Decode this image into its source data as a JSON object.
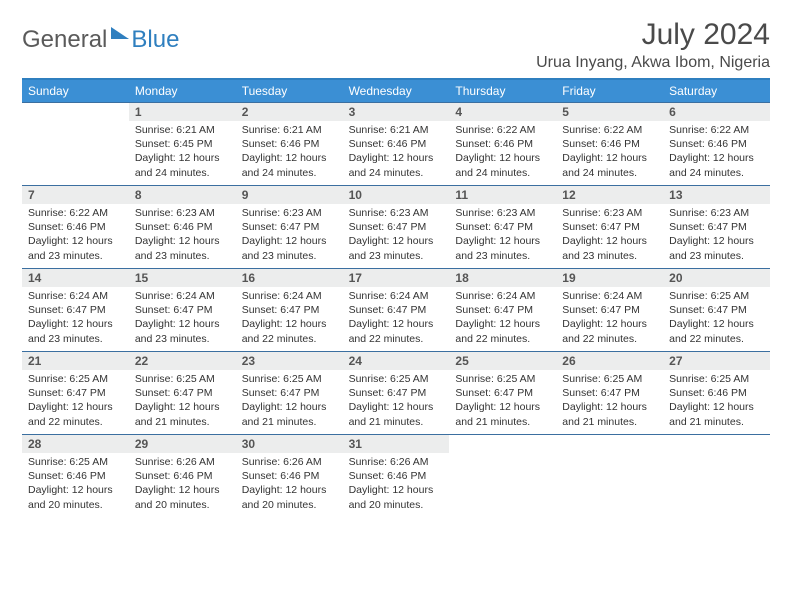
{
  "logo": {
    "word1": "General",
    "word2": "Blue"
  },
  "title": "July 2024",
  "location": "Urua Inyang, Akwa Ibom, Nigeria",
  "colors": {
    "header_bg": "#3b8fd4",
    "header_text": "#ffffff",
    "accent_line": "#2f7fbf",
    "daynum_bg": "#eceded",
    "text": "#333333",
    "logo_gray": "#5a5a5a",
    "logo_blue": "#2f7fbf"
  },
  "day_names": [
    "Sunday",
    "Monday",
    "Tuesday",
    "Wednesday",
    "Thursday",
    "Friday",
    "Saturday"
  ],
  "weeks": [
    [
      {
        "n": "",
        "sr": "",
        "ss": "",
        "dl": ""
      },
      {
        "n": "1",
        "sr": "6:21 AM",
        "ss": "6:45 PM",
        "dl": "12 hours and 24 minutes."
      },
      {
        "n": "2",
        "sr": "6:21 AM",
        "ss": "6:46 PM",
        "dl": "12 hours and 24 minutes."
      },
      {
        "n": "3",
        "sr": "6:21 AM",
        "ss": "6:46 PM",
        "dl": "12 hours and 24 minutes."
      },
      {
        "n": "4",
        "sr": "6:22 AM",
        "ss": "6:46 PM",
        "dl": "12 hours and 24 minutes."
      },
      {
        "n": "5",
        "sr": "6:22 AM",
        "ss": "6:46 PM",
        "dl": "12 hours and 24 minutes."
      },
      {
        "n": "6",
        "sr": "6:22 AM",
        "ss": "6:46 PM",
        "dl": "12 hours and 24 minutes."
      }
    ],
    [
      {
        "n": "7",
        "sr": "6:22 AM",
        "ss": "6:46 PM",
        "dl": "12 hours and 23 minutes."
      },
      {
        "n": "8",
        "sr": "6:23 AM",
        "ss": "6:46 PM",
        "dl": "12 hours and 23 minutes."
      },
      {
        "n": "9",
        "sr": "6:23 AM",
        "ss": "6:47 PM",
        "dl": "12 hours and 23 minutes."
      },
      {
        "n": "10",
        "sr": "6:23 AM",
        "ss": "6:47 PM",
        "dl": "12 hours and 23 minutes."
      },
      {
        "n": "11",
        "sr": "6:23 AM",
        "ss": "6:47 PM",
        "dl": "12 hours and 23 minutes."
      },
      {
        "n": "12",
        "sr": "6:23 AM",
        "ss": "6:47 PM",
        "dl": "12 hours and 23 minutes."
      },
      {
        "n": "13",
        "sr": "6:23 AM",
        "ss": "6:47 PM",
        "dl": "12 hours and 23 minutes."
      }
    ],
    [
      {
        "n": "14",
        "sr": "6:24 AM",
        "ss": "6:47 PM",
        "dl": "12 hours and 23 minutes."
      },
      {
        "n": "15",
        "sr": "6:24 AM",
        "ss": "6:47 PM",
        "dl": "12 hours and 23 minutes."
      },
      {
        "n": "16",
        "sr": "6:24 AM",
        "ss": "6:47 PM",
        "dl": "12 hours and 22 minutes."
      },
      {
        "n": "17",
        "sr": "6:24 AM",
        "ss": "6:47 PM",
        "dl": "12 hours and 22 minutes."
      },
      {
        "n": "18",
        "sr": "6:24 AM",
        "ss": "6:47 PM",
        "dl": "12 hours and 22 minutes."
      },
      {
        "n": "19",
        "sr": "6:24 AM",
        "ss": "6:47 PM",
        "dl": "12 hours and 22 minutes."
      },
      {
        "n": "20",
        "sr": "6:25 AM",
        "ss": "6:47 PM",
        "dl": "12 hours and 22 minutes."
      }
    ],
    [
      {
        "n": "21",
        "sr": "6:25 AM",
        "ss": "6:47 PM",
        "dl": "12 hours and 22 minutes."
      },
      {
        "n": "22",
        "sr": "6:25 AM",
        "ss": "6:47 PM",
        "dl": "12 hours and 21 minutes."
      },
      {
        "n": "23",
        "sr": "6:25 AM",
        "ss": "6:47 PM",
        "dl": "12 hours and 21 minutes."
      },
      {
        "n": "24",
        "sr": "6:25 AM",
        "ss": "6:47 PM",
        "dl": "12 hours and 21 minutes."
      },
      {
        "n": "25",
        "sr": "6:25 AM",
        "ss": "6:47 PM",
        "dl": "12 hours and 21 minutes."
      },
      {
        "n": "26",
        "sr": "6:25 AM",
        "ss": "6:47 PM",
        "dl": "12 hours and 21 minutes."
      },
      {
        "n": "27",
        "sr": "6:25 AM",
        "ss": "6:46 PM",
        "dl": "12 hours and 21 minutes."
      }
    ],
    [
      {
        "n": "28",
        "sr": "6:25 AM",
        "ss": "6:46 PM",
        "dl": "12 hours and 20 minutes."
      },
      {
        "n": "29",
        "sr": "6:26 AM",
        "ss": "6:46 PM",
        "dl": "12 hours and 20 minutes."
      },
      {
        "n": "30",
        "sr": "6:26 AM",
        "ss": "6:46 PM",
        "dl": "12 hours and 20 minutes."
      },
      {
        "n": "31",
        "sr": "6:26 AM",
        "ss": "6:46 PM",
        "dl": "12 hours and 20 minutes."
      },
      {
        "n": "",
        "sr": "",
        "ss": "",
        "dl": ""
      },
      {
        "n": "",
        "sr": "",
        "ss": "",
        "dl": ""
      },
      {
        "n": "",
        "sr": "",
        "ss": "",
        "dl": ""
      }
    ]
  ],
  "labels": {
    "sunrise": "Sunrise:",
    "sunset": "Sunset:",
    "daylight": "Daylight:"
  }
}
